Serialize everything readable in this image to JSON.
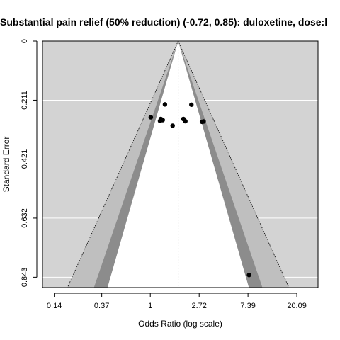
{
  "chart_data": {
    "type": "scatter",
    "title": "Substantial pain relief (50% reduction) (-0.72, 0.85): duloxetine, dose:l",
    "xlabel": "Odds Ratio (log scale)",
    "ylabel": "Standard Error",
    "x_scale": "log",
    "x_ticks": [
      0.14,
      0.37,
      1,
      2.72,
      7.39,
      20.09
    ],
    "x_tick_labels": [
      "0.14",
      "0.37",
      "1",
      "2.72",
      "7.39",
      "20.09"
    ],
    "y_ticks": [
      0,
      0.211,
      0.421,
      0.632,
      0.843
    ],
    "y_tick_labels": [
      "0",
      "0.211",
      "0.421",
      "0.632",
      "0.843"
    ],
    "y_reversed": true,
    "xlim": [
      0.11,
      31
    ],
    "ylim": [
      0.88,
      0
    ],
    "pooled_estimate": 1.77,
    "contour_z": [
      1.645,
      1.96,
      2.576
    ],
    "grid": true,
    "colors": {
      "panel": "#d3d3d3",
      "grid": "#ffffff",
      "outer_band": "#bfbfbf",
      "middle_band": "#8c8c8c",
      "inner_region": "#ffffff",
      "points": "#000000"
    },
    "points": [
      {
        "x": 1.01,
        "y": 0.272
      },
      {
        "x": 1.35,
        "y": 0.226
      },
      {
        "x": 1.24,
        "y": 0.278
      },
      {
        "x": 1.22,
        "y": 0.285
      },
      {
        "x": 1.29,
        "y": 0.282
      },
      {
        "x": 1.58,
        "y": 0.302
      },
      {
        "x": 1.97,
        "y": 0.278
      },
      {
        "x": 2.05,
        "y": 0.286
      },
      {
        "x": 2.32,
        "y": 0.227
      },
      {
        "x": 2.88,
        "y": 0.288
      },
      {
        "x": 2.98,
        "y": 0.287
      },
      {
        "x": 7.55,
        "y": 0.835
      }
    ]
  }
}
